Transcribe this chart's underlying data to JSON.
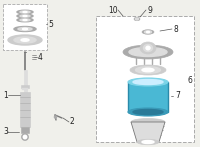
{
  "bg_color": "#f0f0eb",
  "highlight_color": "#4ab8d4",
  "highlight_color2": "#2a8aaa",
  "highlight_color3": "#7dd4e8",
  "part_color": "#999999",
  "line_color": "#555555",
  "text_color": "#222222",
  "label_font_size": 5.5,
  "gray_dark": "#777777",
  "gray_mid": "#aaaaaa",
  "gray_light": "#cccccc",
  "gray_lighter": "#dddddd",
  "white": "#ffffff"
}
